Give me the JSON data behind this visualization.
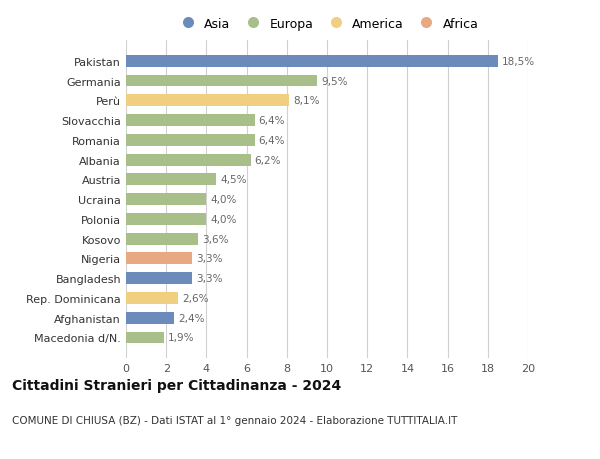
{
  "categories": [
    "Macedonia d/N.",
    "Afghanistan",
    "Rep. Dominicana",
    "Bangladesh",
    "Nigeria",
    "Kosovo",
    "Polonia",
    "Ucraina",
    "Austria",
    "Albania",
    "Romania",
    "Slovacchia",
    "Perù",
    "Germania",
    "Pakistan"
  ],
  "values": [
    1.9,
    2.4,
    2.6,
    3.3,
    3.3,
    3.6,
    4.0,
    4.0,
    4.5,
    6.2,
    6.4,
    6.4,
    8.1,
    9.5,
    18.5
  ],
  "labels": [
    "1,9%",
    "2,4%",
    "2,6%",
    "3,3%",
    "3,3%",
    "3,6%",
    "4,0%",
    "4,0%",
    "4,5%",
    "6,2%",
    "6,4%",
    "6,4%",
    "8,1%",
    "9,5%",
    "18,5%"
  ],
  "continents": [
    "Europa",
    "Asia",
    "America",
    "Asia",
    "Africa",
    "Europa",
    "Europa",
    "Europa",
    "Europa",
    "Europa",
    "Europa",
    "Europa",
    "America",
    "Europa",
    "Asia"
  ],
  "colors": {
    "Asia": "#6b8cba",
    "Europa": "#a8bf8a",
    "America": "#f0d080",
    "Africa": "#e8a882"
  },
  "legend_order": [
    "Asia",
    "Europa",
    "America",
    "Africa"
  ],
  "title": "Cittadini Stranieri per Cittadinanza - 2024",
  "subtitle": "COMUNE DI CHIUSA (BZ) - Dati ISTAT al 1° gennaio 2024 - Elaborazione TUTTITALIA.IT",
  "xlim": [
    0,
    20
  ],
  "xticks": [
    0,
    2,
    4,
    6,
    8,
    10,
    12,
    14,
    16,
    18,
    20
  ],
  "bg_color": "#ffffff",
  "grid_color": "#d0d0d0",
  "bar_height": 0.6
}
